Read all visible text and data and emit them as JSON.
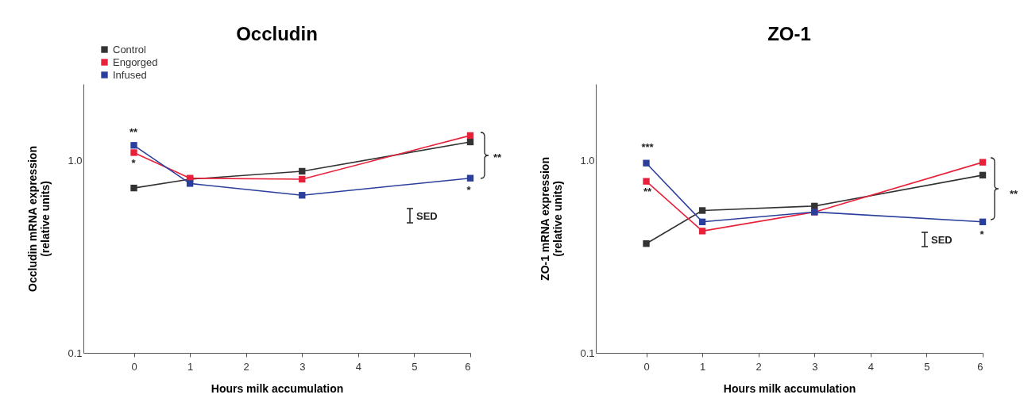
{
  "chart_data": [
    {
      "type": "line",
      "title": "Occludin",
      "xlabel": "Hours milk accumulation",
      "ylabel": "Occludin mRNA expression\n(relative units)",
      "x": [
        0,
        1,
        3,
        6
      ],
      "xlim": [
        -0.9,
        6
      ],
      "xticks": [
        0,
        1,
        2,
        3,
        4,
        5,
        6
      ],
      "ylim": [
        0.1,
        2.5
      ],
      "yticks": [
        0.1,
        {
          "value": 1,
          "label": "1.0"
        }
      ],
      "log": true,
      "marker": "square",
      "legend": "top left",
      "series": [
        {
          "name": "Control",
          "color": "#333333",
          "values": [
            0.72,
            0.8,
            0.88,
            1.25
          ]
        },
        {
          "name": "Engorged",
          "color": "#e8213a",
          "values": [
            1.1,
            0.81,
            0.8,
            1.35
          ]
        },
        {
          "name": "Infused",
          "color": "#2a3f9c",
          "values": [
            1.2,
            0.76,
            0.66,
            0.81
          ]
        }
      ],
      "annotations": [
        "**",
        "*",
        "*",
        "**",
        "SED"
      ]
    },
    {
      "type": "line",
      "title": "ZO-1",
      "xlabel": "Hours milk accumulation",
      "ylabel": "ZO-1 mRNA expression\n(relative units)",
      "x": [
        0,
        1,
        3,
        6
      ],
      "xlim": [
        -0.9,
        6
      ],
      "xticks": [
        0,
        1,
        2,
        3,
        4,
        5,
        6
      ],
      "ylim": [
        0.1,
        2.5
      ],
      "yticks": [
        0.1,
        {
          "value": 1,
          "label": "1.0"
        }
      ],
      "log": true,
      "marker": "square",
      "legend": "top left",
      "series": [
        {
          "name": "Control",
          "color": "#333333",
          "values": [
            0.37,
            0.55,
            0.58,
            0.84
          ]
        },
        {
          "name": "Engorged",
          "color": "#e8213a",
          "values": [
            0.78,
            0.43,
            0.54,
            0.98
          ]
        },
        {
          "name": "Infused",
          "color": "#2a3f9c",
          "values": [
            0.97,
            0.48,
            0.54,
            0.48
          ]
        }
      ],
      "annotations": [
        "***",
        "**",
        "*",
        "**",
        "SED"
      ]
    }
  ]
}
